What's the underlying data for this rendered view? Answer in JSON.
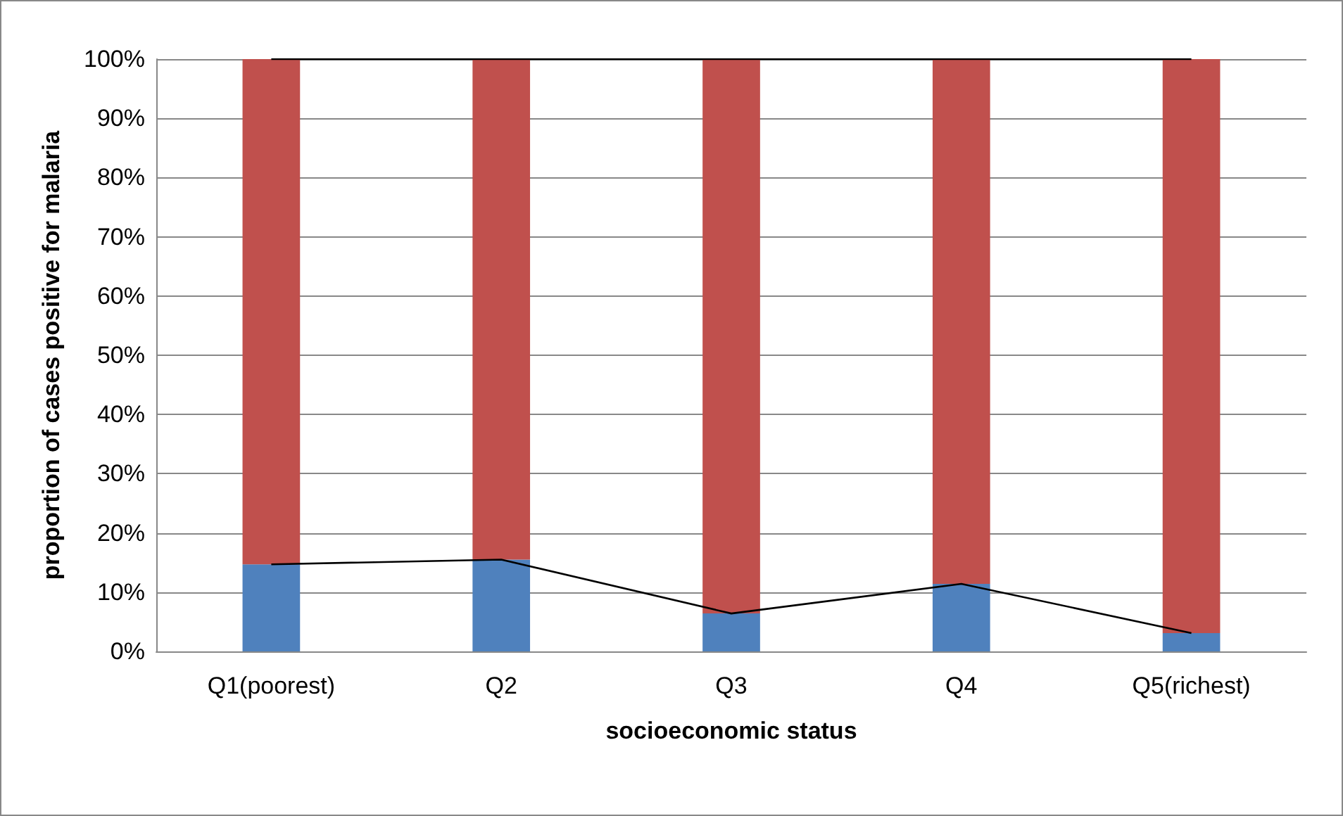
{
  "chart_data": {
    "type": "bar",
    "stacked": true,
    "xlabel": "socioeconomic status",
    "ylabel": "proportion of cases positive for malaria",
    "categories": [
      "Q1(poorest)",
      "Q2",
      "Q3",
      "Q4",
      "Q5(richest)"
    ],
    "series": [
      {
        "color": "#4f81bd",
        "values": [
          14.7,
          15.5,
          6.4,
          11.4,
          3.1
        ]
      },
      {
        "color": "#c0504d",
        "values": [
          85.3,
          84.5,
          93.6,
          88.6,
          96.9
        ]
      },
      {
        "type": "line",
        "color": "#000000",
        "values": [
          14.7,
          15.5,
          6.4,
          11.4,
          3.1
        ]
      },
      {
        "type": "line",
        "color": "#000000",
        "values": [
          100,
          100,
          100,
          100,
          100
        ]
      }
    ],
    "ylim": [
      0,
      100
    ],
    "yticks": [
      {
        "value": 0,
        "label": "0%"
      },
      {
        "value": 10,
        "label": "10%"
      },
      {
        "value": 20,
        "label": "20%"
      },
      {
        "value": 30,
        "label": "30%"
      },
      {
        "value": 40,
        "label": "40%"
      },
      {
        "value": 50,
        "label": "50%"
      },
      {
        "value": 60,
        "label": "60%"
      },
      {
        "value": 70,
        "label": "70%"
      },
      {
        "value": 80,
        "label": "80%"
      },
      {
        "value": 90,
        "label": "90%"
      },
      {
        "value": 100,
        "label": "100%"
      }
    ],
    "grid": "y",
    "marker": "none"
  }
}
